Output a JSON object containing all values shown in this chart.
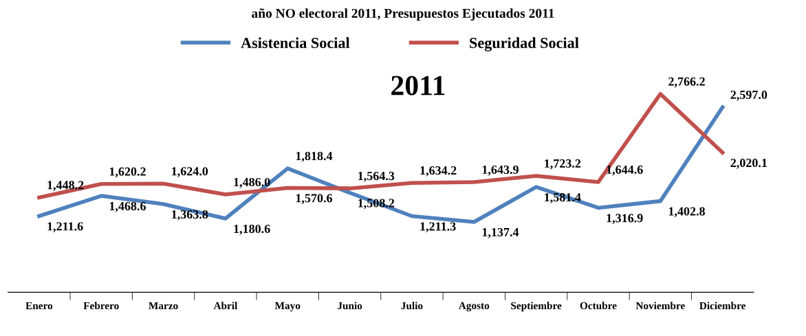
{
  "chart_data": {
    "type": "line",
    "title": "año NO electoral 2011, Presupuestos Ejecutados 2011",
    "categories": [
      "Enero",
      "Febrero",
      "Marzo",
      "Abril",
      "Mayo",
      "Junio",
      "Julio",
      "Agosto",
      "Septiembre",
      "Octubre",
      "Noviembre",
      "Diciembre"
    ],
    "series": [
      {
        "name": "Asistencia Social",
        "color": "#4f81bd",
        "values": [
          1211.6,
          1468.6,
          1363.8,
          1180.6,
          1818.4,
          1508.2,
          1211.3,
          1137.4,
          1581.4,
          1316.9,
          1402.8,
          2597.0
        ],
        "value_labels": [
          "1,211.6",
          "1,468.6",
          "1,363.8",
          "1,180.6",
          "1,818.4",
          "1,508.2",
          "1,211.3",
          "1,137.4",
          "1,581.4",
          "1,316.9",
          "1,402.8",
          "2,597.0"
        ]
      },
      {
        "name": "Seguridad Social",
        "color": "#c0504d",
        "values": [
          1448.2,
          1620.2,
          1624.0,
          1486.0,
          1570.6,
          1564.3,
          1634.2,
          1643.9,
          1723.2,
          1644.6,
          2766.2,
          2020.1
        ],
        "value_labels": [
          "1,448.2",
          "1,620.2",
          "1,624.0",
          "1,486.0",
          "1,570.6",
          "1,564.3",
          "1,634.2",
          "1,643.9",
          "1,723.2",
          "1,644.6",
          "2,766.2",
          "2,020.1"
        ]
      }
    ],
    "annotations": [
      "2011"
    ],
    "tick_labels": "x",
    "legend": "top",
    "grid": false,
    "marker": "none",
    "line_style": "solid"
  }
}
